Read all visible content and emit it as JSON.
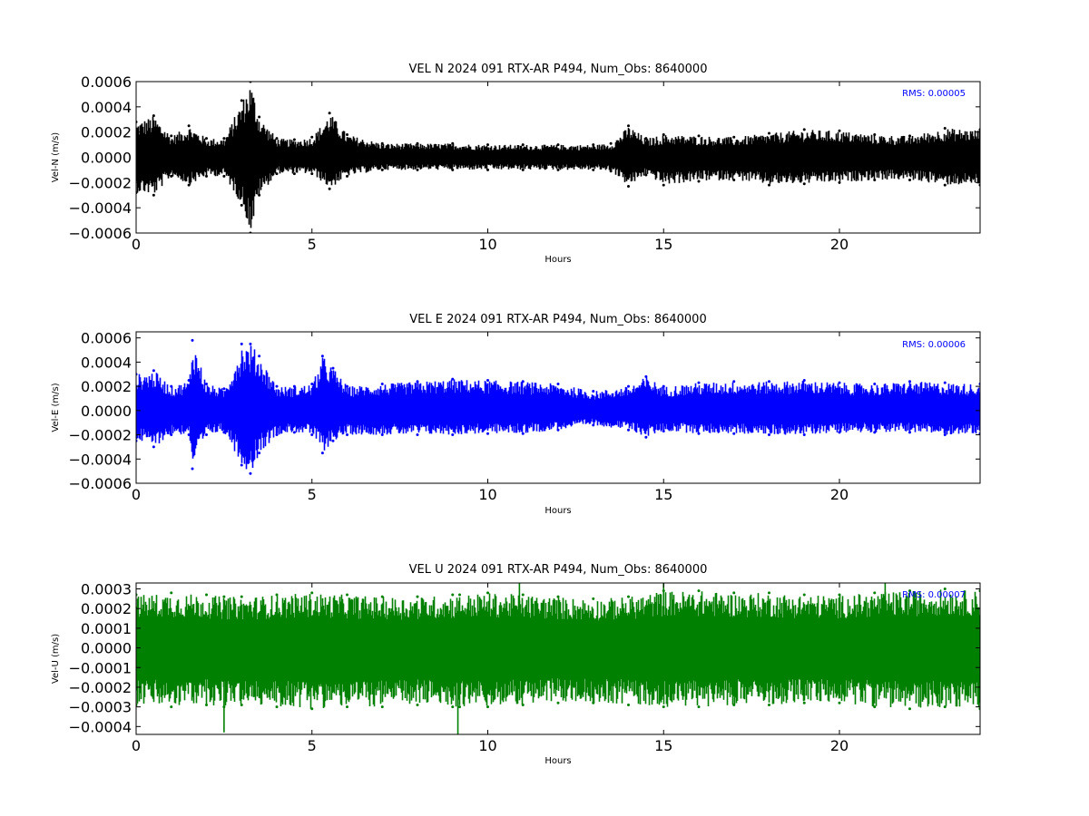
{
  "figure": {
    "background": "#ffffff"
  },
  "chart_data": [
    {
      "type": "scatter",
      "title": "VEL N 2024 091 RTX-AR  P494, Num_Obs: 8640000",
      "xlabel": "Hours",
      "ylabel": "Vel-N (m/s)",
      "xlim": [
        0,
        24
      ],
      "ylim": [
        -0.0006,
        0.0006
      ],
      "xticks": [
        0,
        5,
        10,
        15,
        20
      ],
      "xtick_labels": [
        "0",
        "5",
        "10",
        "15",
        "20"
      ],
      "yticks": [
        0.0006,
        0.0004,
        0.0002,
        0.0,
        -0.0002,
        -0.0004,
        -0.0006
      ],
      "ytick_labels": [
        "0.0006",
        "0.0004",
        "0.0002",
        "0.0000",
        "−0.0002",
        "−0.0004",
        "−0.0006"
      ],
      "rms_label": "RMS:  0.00005",
      "series": [
        {
          "color": "#000000",
          "x": [
            0,
            0.5,
            1,
            1.5,
            2,
            2.5,
            3,
            3.25,
            3.5,
            4,
            4.5,
            5,
            5.5,
            6,
            7,
            8,
            9,
            10,
            11,
            12,
            13,
            13.5,
            14,
            14.5,
            15,
            16,
            17,
            18,
            19,
            20,
            21,
            22,
            23,
            24
          ],
          "upper": [
            0.00028,
            0.00033,
            0.00017,
            0.00025,
            0.00015,
            0.00015,
            0.00045,
            0.0006,
            0.00032,
            0.00015,
            0.00014,
            0.00016,
            0.00035,
            0.00018,
            0.00011,
            0.00011,
            0.00011,
            0.0001,
            0.0001,
            0.0001,
            0.0001,
            0.00011,
            0.00025,
            0.00015,
            0.00018,
            0.00017,
            0.00016,
            0.00019,
            0.00022,
            0.00021,
            0.00018,
            0.00017,
            0.00023,
            0.00022
          ],
          "lower": [
            -0.00028,
            -0.0003,
            -0.00015,
            -0.00022,
            -0.00015,
            -0.00015,
            -0.00038,
            -0.0006,
            -0.0003,
            -0.00013,
            -0.00013,
            -0.00013,
            -0.00025,
            -0.00015,
            -0.0001,
            -0.0001,
            -0.0001,
            -0.0001,
            -0.0001,
            -0.0001,
            -0.0001,
            -0.00011,
            -0.00023,
            -0.00014,
            -0.00022,
            -0.00019,
            -0.00018,
            -0.00022,
            -0.00021,
            -0.0002,
            -0.00018,
            -0.00018,
            -0.00022,
            -0.00022
          ]
        }
      ]
    },
    {
      "type": "scatter",
      "title": "VEL E 2024 091 RTX-AR  P494, Num_Obs: 8640000",
      "xlabel": "Hours",
      "ylabel": "Vel-E (m/s)",
      "xlim": [
        0,
        24
      ],
      "ylim": [
        -0.0006,
        0.00065
      ],
      "xticks": [
        0,
        5,
        10,
        15,
        20
      ],
      "xtick_labels": [
        "0",
        "5",
        "10",
        "15",
        "20"
      ],
      "yticks": [
        0.0006,
        0.0004,
        0.0002,
        0.0,
        -0.0002,
        -0.0004,
        -0.0006
      ],
      "ytick_labels": [
        "0.0006",
        "0.0004",
        "0.0002",
        "0.0000",
        "−0.0002",
        "−0.0004",
        "−0.0006"
      ],
      "rms_label": "RMS:  0.00006",
      "series": [
        {
          "color": "#0000ff",
          "x": [
            0,
            0.5,
            1,
            1.5,
            1.6,
            2,
            2.5,
            3,
            3.25,
            3.5,
            4,
            4.5,
            5,
            5.3,
            5.6,
            6,
            7,
            8,
            9,
            10,
            11,
            12,
            13,
            14,
            14.5,
            15,
            16,
            17,
            18,
            19,
            20,
            21,
            22,
            23,
            24
          ],
          "upper": [
            0.0003,
            0.00033,
            0.0002,
            0.00025,
            0.00058,
            0.00022,
            0.00018,
            0.00055,
            0.00055,
            0.00045,
            0.0002,
            0.0002,
            0.00022,
            0.00045,
            0.00035,
            0.0002,
            0.00022,
            0.00024,
            0.00026,
            0.00025,
            0.00024,
            0.00022,
            0.00016,
            0.0002,
            0.00028,
            0.0002,
            0.00023,
            0.00024,
            0.00024,
            0.00025,
            0.00023,
            0.00022,
            0.00024,
            0.00023,
            0.00022
          ],
          "lower": [
            -0.00025,
            -0.0003,
            -0.0002,
            -0.0002,
            -0.00048,
            -0.0002,
            -0.00018,
            -0.00045,
            -0.00052,
            -0.00035,
            -0.0002,
            -0.00018,
            -0.0002,
            -0.00035,
            -0.00025,
            -0.0002,
            -0.0002,
            -0.0002,
            -0.0002,
            -0.00019,
            -0.00019,
            -0.00016,
            -0.00012,
            -0.00016,
            -0.00022,
            -0.00017,
            -0.00019,
            -0.00019,
            -0.0002,
            -0.0002,
            -0.00018,
            -0.00018,
            -0.00018,
            -0.0002,
            -0.00019
          ]
        }
      ]
    },
    {
      "type": "scatter",
      "title": "VEL U 2024 091 RTX-AR  P494, Num_Obs: 8640000",
      "xlabel": "Hours",
      "ylabel": "Vel-U (m/s)",
      "xlim": [
        0,
        24
      ],
      "ylim": [
        -0.00044,
        0.00033
      ],
      "xticks": [
        0,
        5,
        10,
        15,
        20
      ],
      "xtick_labels": [
        "0",
        "5",
        "10",
        "15",
        "20"
      ],
      "yticks": [
        0.0003,
        0.0002,
        0.0001,
        0.0,
        -0.0001,
        -0.0002,
        -0.0003,
        -0.0004
      ],
      "ytick_labels": [
        "0.0003",
        "0.0002",
        "0.0001",
        "0.0000",
        "−0.0001",
        "−0.0002",
        "−0.0003",
        "−0.0004"
      ],
      "rms_label": "RMS:  0.00007",
      "series": [
        {
          "color": "#008000",
          "x": [
            0,
            1,
            2,
            2.5,
            3,
            4,
            5,
            6,
            7,
            8,
            9,
            9.2,
            10,
            11,
            12,
            13,
            14,
            15,
            16,
            17,
            18,
            19,
            20,
            21,
            22,
            23,
            24
          ],
          "upper": [
            0.00027,
            0.00028,
            0.00027,
            0.00026,
            0.00026,
            0.00027,
            0.00028,
            0.00027,
            0.00026,
            0.00026,
            0.00027,
            0.00027,
            0.00028,
            0.00027,
            0.00026,
            0.00025,
            0.00026,
            0.00029,
            0.00029,
            0.00028,
            0.00028,
            0.00027,
            0.00027,
            0.00028,
            0.00029,
            0.0003,
            0.00029
          ],
          "lower": [
            -0.00029,
            -0.0003,
            -0.00029,
            -0.0003,
            -0.00029,
            -0.0003,
            -0.00031,
            -0.0003,
            -0.0003,
            -0.00029,
            -0.0003,
            -0.0003,
            -0.0003,
            -0.00029,
            -0.00028,
            -0.00028,
            -0.00029,
            -0.0003,
            -0.0003,
            -0.00029,
            -0.00029,
            -0.00028,
            -0.00028,
            -0.0003,
            -0.00031,
            -0.0003,
            -0.00031
          ],
          "spikes": [
            {
              "x": 2.5,
              "y": -0.00043
            },
            {
              "x": 9.15,
              "y": -0.00044
            },
            {
              "x": 10.9,
              "y": 0.00033
            },
            {
              "x": 15.0,
              "y": 0.00033
            },
            {
              "x": 21.3,
              "y": 0.00033
            }
          ]
        }
      ]
    }
  ]
}
